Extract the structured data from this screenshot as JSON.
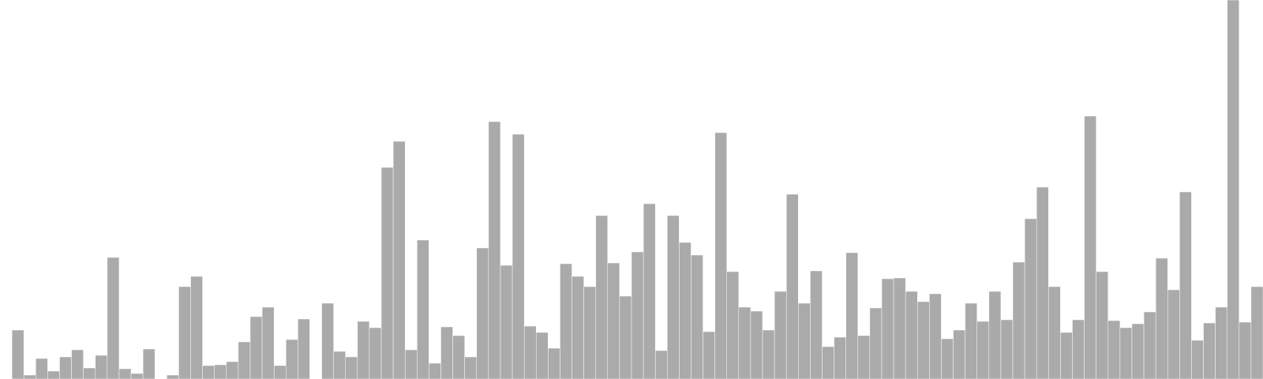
{
  "chart_data": {
    "type": "bar",
    "title": "",
    "xlabel": "",
    "ylabel": "",
    "ylim": [
      0,
      480
    ],
    "grid": false,
    "legend": "none",
    "bar_color": "#aaaaaa",
    "bar_edge_color": "#ffffff",
    "values": [
      0,
      62,
      5,
      26,
      10,
      28,
      37,
      14,
      30,
      154,
      13,
      7,
      38,
      0,
      5,
      117,
      130,
      17,
      18,
      22,
      47,
      79,
      91,
      17,
      50,
      76,
      0,
      96,
      35,
      28,
      73,
      65,
      268,
      301,
      37,
      176,
      20,
      66,
      55,
      28,
      166,
      326,
      144,
      310,
      67,
      59,
      39,
      146,
      130,
      117,
      207,
      147,
      105,
      161,
      222,
      36,
      207,
      173,
      157,
      60,
      312,
      136,
      91,
      86,
      62,
      111,
      234,
      96,
      137,
      41,
      53,
      160,
      55,
      90,
      127,
      128,
      111,
      98,
      108,
      51,
      62,
      96,
      73,
      111,
      75,
      148,
      203,
      243,
      117,
      59,
      75,
      333,
      136,
      74,
      65,
      70,
      85,
      153,
      113,
      237,
      49,
      71,
      91,
      480,
      72,
      117
    ]
  }
}
